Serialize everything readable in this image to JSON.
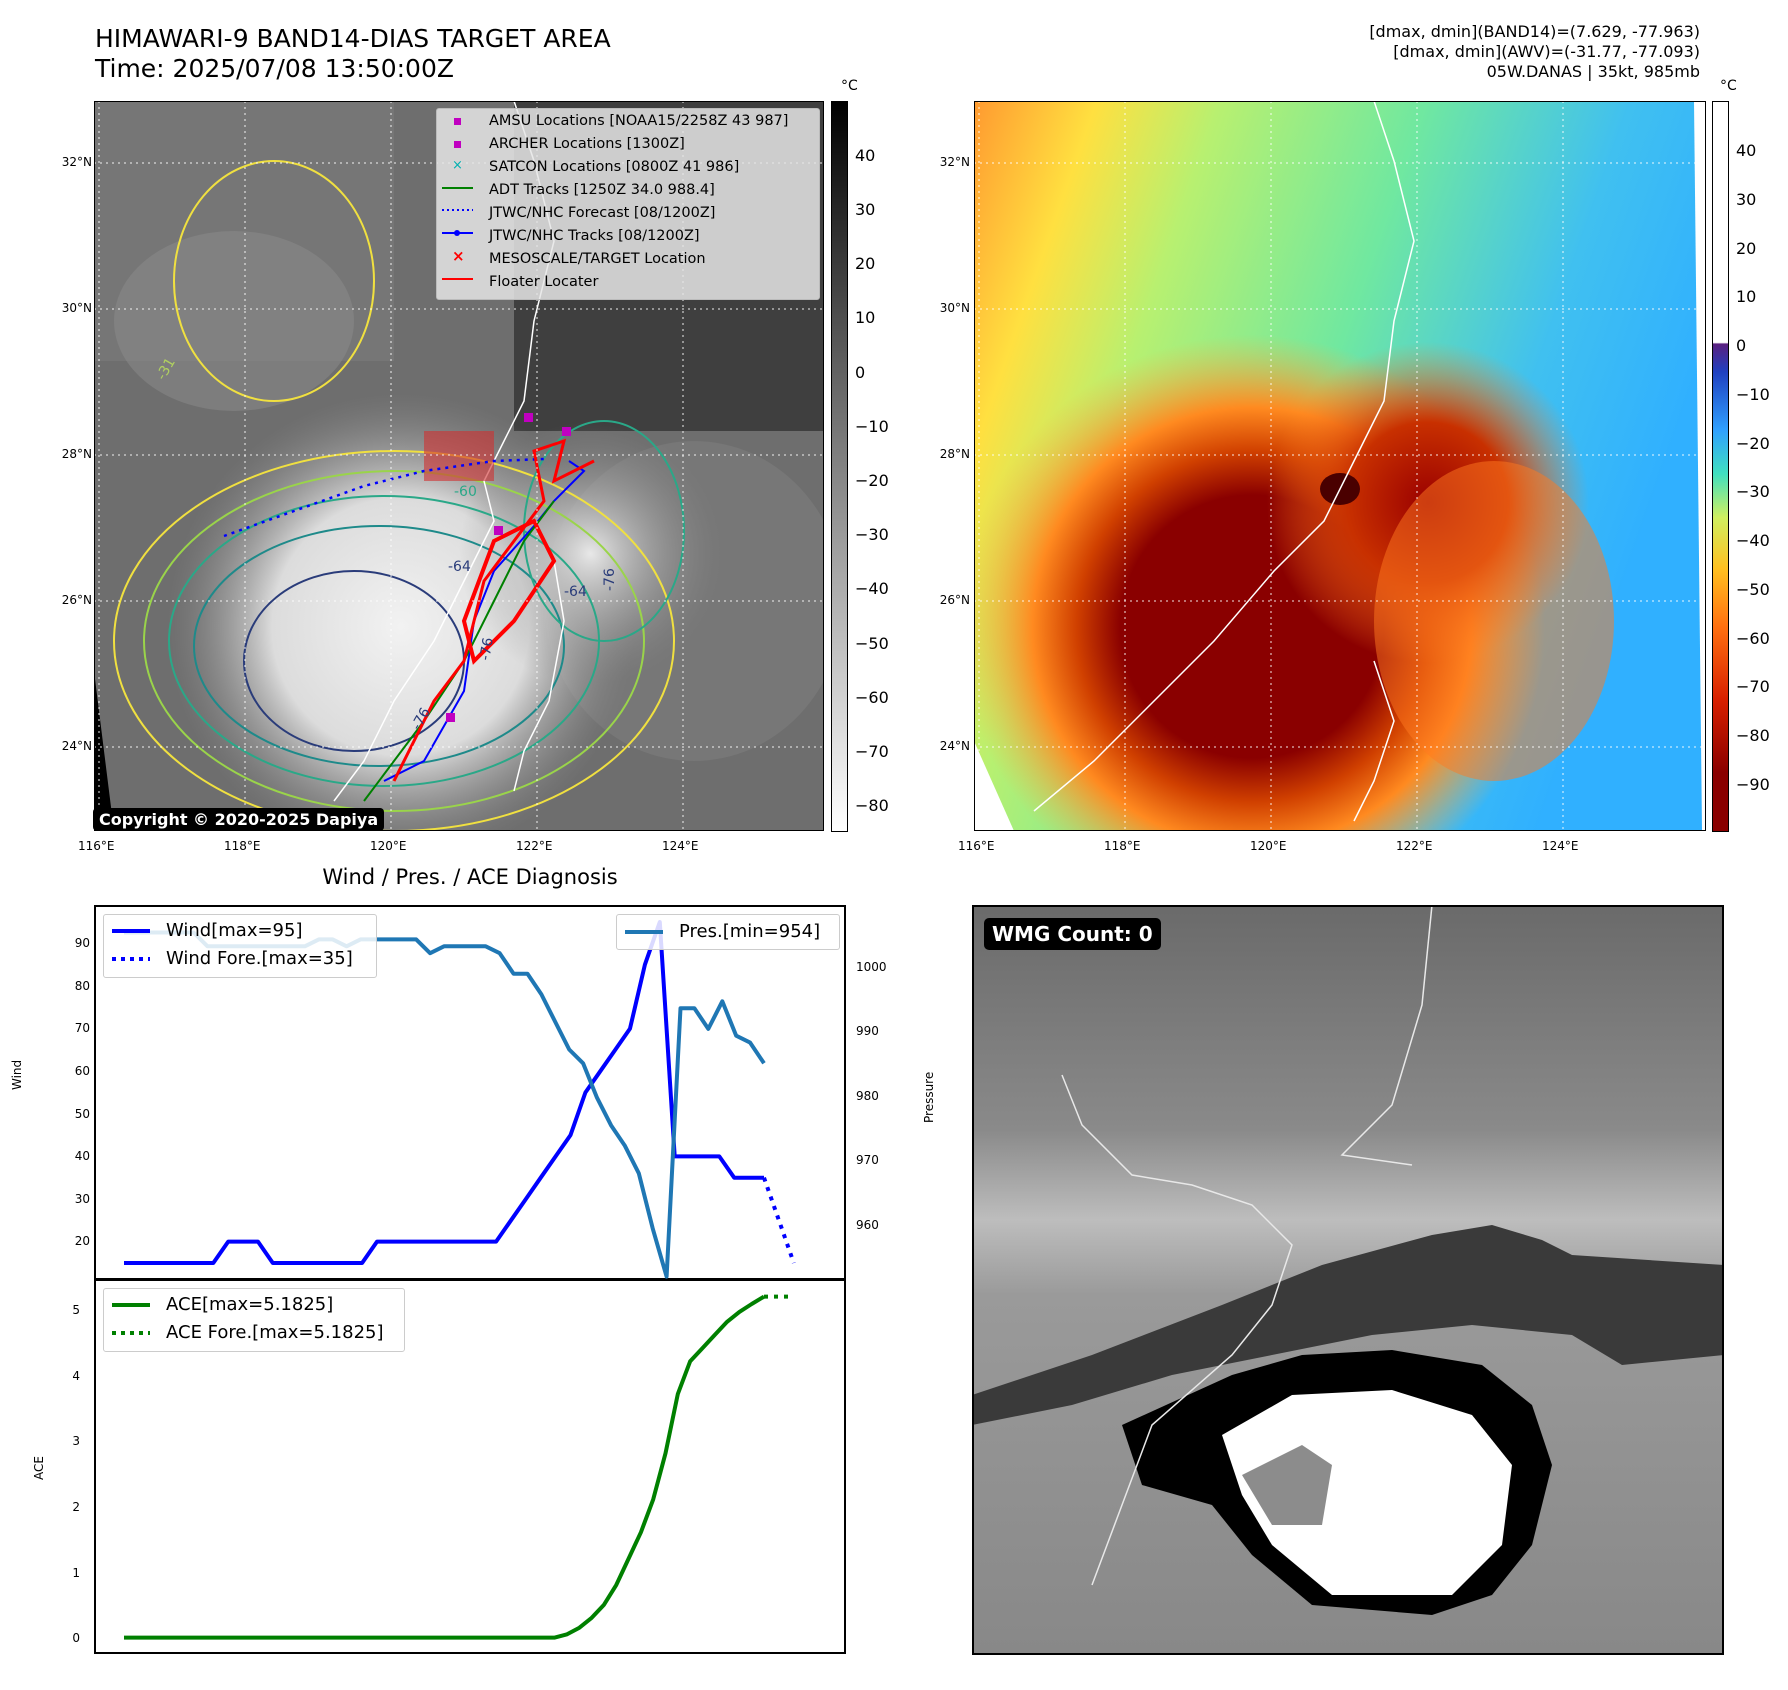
{
  "header": {
    "title_line1": "HIMAWARI-9 BAND14-DIAS TARGET AREA",
    "title_line2": "Time: 2025/07/08 13:50:00Z",
    "info_line1": "[dmax, dmin](BAND14)=(7.629, -77.963)",
    "info_line2": "[dmax, dmin](AWV)=(-31.77, -77.093)",
    "info_line3": "05W.DANAS | 35kt, 985mb"
  },
  "map": {
    "lat_labels": [
      "32°N",
      "30°N",
      "28°N",
      "26°N",
      "24°N"
    ],
    "lon_labels": [
      "116°E",
      "118°E",
      "120°E",
      "122°E",
      "124°E"
    ],
    "copyright": "Copyright © 2020-2025 Dapiya",
    "contour_labels": [
      "-31",
      "-64",
      "-76",
      "-76",
      "-64",
      "-76",
      "-60"
    ]
  },
  "legend": {
    "items": [
      {
        "label": "AMSU Locations [NOAA15/2258Z 43 987]",
        "symbol": "square",
        "color": "#c000c0"
      },
      {
        "label": "ARCHER Locations [1300Z]",
        "symbol": "square",
        "color": "#c000c0"
      },
      {
        "label": "SATCON Locations [0800Z 41 986]",
        "symbol": "x",
        "color": "#00b0b0"
      },
      {
        "label": "ADT Tracks [1250Z 34.0 988.4]",
        "symbol": "line",
        "color": "#008000"
      },
      {
        "label": "JTWC/NHC Forecast [08/1200Z]",
        "symbol": "dotted",
        "color": "#0000ff"
      },
      {
        "label": "JTWC/NHC Tracks [08/1200Z]",
        "symbol": "line-dot",
        "color": "#0000ff"
      },
      {
        "label": "MESOSCALE/TARGET Location",
        "symbol": "x",
        "color": "#ff0000"
      },
      {
        "label": "Floater Locater",
        "symbol": "line",
        "color": "#ff0000"
      }
    ]
  },
  "colorbar_ir": {
    "unit": "°C",
    "ticks": [
      "40",
      "30",
      "20",
      "10",
      "0",
      "−10",
      "−20",
      "−30",
      "−40",
      "−50",
      "−60",
      "−70",
      "−80"
    ]
  },
  "colorbar_color": {
    "unit": "°C",
    "ticks": [
      "40",
      "30",
      "20",
      "10",
      "0",
      "−10",
      "−20",
      "−30",
      "−40",
      "−50",
      "−60",
      "−70",
      "−80",
      "−90"
    ]
  },
  "diagnosis": {
    "title": "Wind / Pres. / ACE Diagnosis",
    "wind_ylabel": "Wind",
    "pres_ylabel": "Pressure",
    "ace_ylabel": "ACE",
    "wind_ticks": [
      "90",
      "80",
      "70",
      "60",
      "50",
      "40",
      "30",
      "20"
    ],
    "pres_ticks": [
      "1000",
      "990",
      "980",
      "970",
      "960"
    ],
    "ace_ticks": [
      "5",
      "4",
      "3",
      "2",
      "1",
      "0"
    ],
    "legend_wind": "Wind[max=95]",
    "legend_wind_fore": "Wind Fore.[max=35]",
    "legend_pres": "Pres.[min=954]",
    "legend_ace": "ACE[max=5.1825]",
    "legend_ace_fore": "ACE Fore.[max=5.1825]"
  },
  "wmg": {
    "label": "WMG Count: 0"
  },
  "chart_data": [
    {
      "type": "line",
      "name": "wind",
      "title": "Wind / Pres. / ACE Diagnosis",
      "ylabel": "Wind",
      "ylim": [
        11,
        99
      ],
      "series": [
        {
          "name": "Wind[max=95]",
          "color": "#0000ff",
          "style": "solid",
          "values": [
            15,
            15,
            15,
            15,
            15,
            15,
            15,
            20,
            20,
            20,
            15,
            15,
            15,
            15,
            15,
            15,
            15,
            20,
            20,
            20,
            20,
            20,
            20,
            20,
            20,
            20,
            25,
            30,
            35,
            40,
            45,
            55,
            60,
            65,
            70,
            85,
            95,
            40,
            40,
            40,
            40,
            35,
            35,
            35
          ]
        },
        {
          "name": "Wind Fore.[max=35]",
          "color": "#0000ff",
          "style": "dotted",
          "x_start": 43,
          "values": [
            35,
            25,
            15
          ]
        }
      ]
    },
    {
      "type": "line",
      "name": "pressure",
      "ylabel": "Pressure",
      "ylim": [
        953.5,
        1008
      ],
      "series": [
        {
          "name": "Pres.[min=954]",
          "color": "#1f77b4",
          "values": [
            1004,
            1004,
            1004,
            1004,
            1004,
            1004,
            1002,
            1002,
            1002,
            1002,
            1002,
            1002,
            1002,
            1002,
            1003,
            1003,
            1002,
            1003,
            1003,
            1003,
            1003,
            1003,
            1001,
            1002,
            1002,
            1002,
            1002,
            1001,
            998,
            998,
            995,
            991,
            987,
            985,
            980,
            976,
            973,
            969,
            961,
            954,
            993,
            993,
            990,
            994,
            989,
            988,
            985
          ]
        }
      ]
    },
    {
      "type": "line",
      "name": "ace",
      "ylabel": "ACE",
      "ylim": [
        -0.25,
        5.45
      ],
      "series": [
        {
          "name": "ACE[max=5.1825]",
          "color": "#008000",
          "style": "solid",
          "values": [
            0,
            0,
            0,
            0,
            0,
            0,
            0,
            0,
            0,
            0,
            0,
            0,
            0,
            0,
            0,
            0,
            0,
            0,
            0,
            0,
            0,
            0,
            0,
            0,
            0,
            0,
            0,
            0,
            0,
            0,
            0,
            0,
            0,
            0,
            0,
            0,
            0.05,
            0.15,
            0.3,
            0.5,
            0.8,
            1.2,
            1.6,
            2.1,
            2.8,
            3.7,
            4.2,
            4.4,
            4.6,
            4.8,
            4.95,
            5.07,
            5.1825
          ]
        },
        {
          "name": "ACE Fore.[max=5.1825]",
          "color": "#008000",
          "style": "dotted",
          "x_start": 52,
          "values": [
            5.1825,
            5.1825,
            5.1825
          ]
        }
      ]
    }
  ]
}
